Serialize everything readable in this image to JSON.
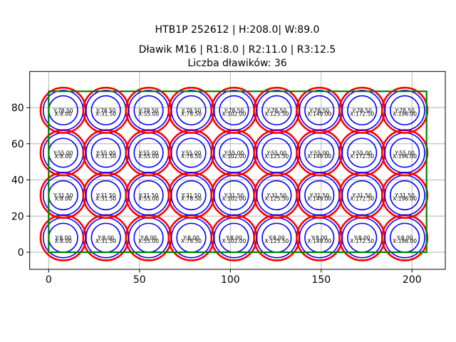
{
  "titles": {
    "suptitle": "HTB1P 252612 | H:208.0| W:89.0",
    "title_line1": "Dławik M16 | R1:8.0 | R2:11.0 | R3:12.5",
    "title_line2": "Liczba dławików: 36"
  },
  "chart_data": {
    "type": "scatter",
    "title": "HTB1P 252612 | H:208.0| W:89.0",
    "subtitle": "Dławik M16 | R1:8.0 | R2:11.0 | R3:12.5 — Liczba dławików: 36",
    "panel": {
      "width": 208.0,
      "height": 89.0
    },
    "gland": {
      "name": "M16",
      "r1": 8.0,
      "r2": 11.0,
      "r3": 12.5,
      "count": 36
    },
    "x_centers": [
      8.0,
      31.5,
      55.0,
      78.5,
      102.0,
      125.5,
      149.0,
      172.5,
      196.0
    ],
    "y_centers": [
      8.0,
      31.5,
      55.0,
      78.5
    ],
    "x_center_labels": [
      "X:8.00",
      "X:31.50",
      "X:55.00",
      "X:78.50",
      "X:102.00",
      "X:125.50",
      "X:149.00",
      "X:172.50",
      "X:196.00"
    ],
    "y_center_labels": [
      "Y:8.00",
      "Y:31.50",
      "Y:55.00",
      "Y:78.50"
    ],
    "x_ticks": [
      "0",
      "50",
      "100",
      "150",
      "200"
    ],
    "x_tick_values": [
      0,
      50,
      100,
      150,
      200
    ],
    "y_ticks": [
      "0",
      "20",
      "40",
      "60",
      "80"
    ],
    "y_tick_values": [
      0,
      20,
      40,
      60,
      80
    ],
    "xlim": [
      -10.4,
      218.4
    ],
    "ylim": [
      -9.4,
      100.0
    ],
    "grid": true,
    "legend": false,
    "colors": {
      "outer_circle": "#ff0000",
      "inner_circles": "#0000ff",
      "panel_rect": "#008000",
      "gridline": "#b0b0b0",
      "spine": "#000000",
      "text": "#000000"
    }
  }
}
